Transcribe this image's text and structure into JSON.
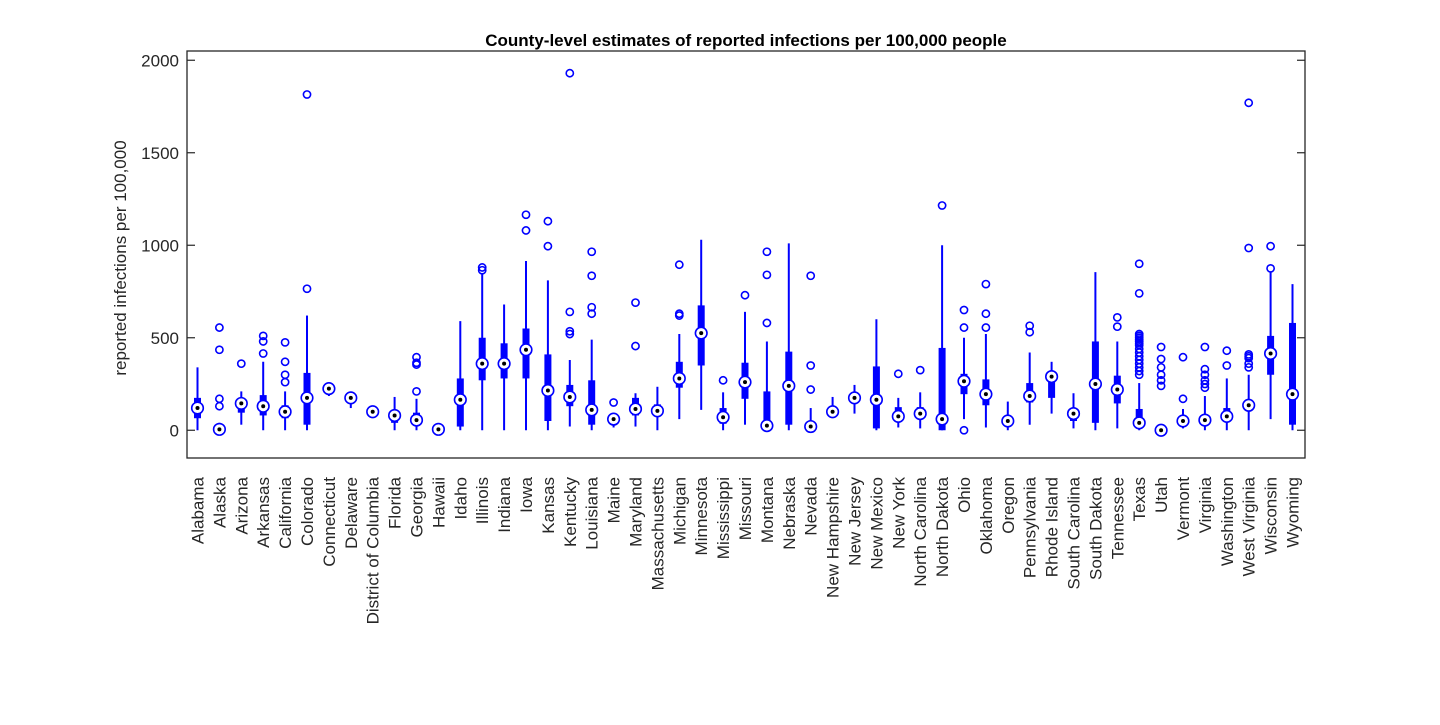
{
  "chart_data": {
    "type": "boxplot",
    "title": "County-level estimates of reported infections per 100,000 people",
    "xlabel": "",
    "ylabel": "reported infections per 100,000",
    "ylim": [
      -150,
      2050
    ],
    "yticks": [
      0,
      500,
      1000,
      1500,
      2000
    ],
    "grid": false,
    "legend": "none",
    "colors": {
      "box": "#0000ff",
      "median_dot": "#000000",
      "axis": "#262626"
    },
    "categories": [
      "Alabama",
      "Alaska",
      "Arizona",
      "Arkansas",
      "California",
      "Colorado",
      "Connecticut",
      "Delaware",
      "District of Columbia",
      "Florida",
      "Georgia",
      "Hawaii",
      "Idaho",
      "Illinois",
      "Indiana",
      "Iowa",
      "Kansas",
      "Kentucky",
      "Louisiana",
      "Maine",
      "Maryland",
      "Massachusetts",
      "Michigan",
      "Minnesota",
      "Mississippi",
      "Missouri",
      "Montana",
      "Nebraska",
      "Nevada",
      "New Hampshire",
      "New Jersey",
      "New Mexico",
      "New York",
      "North Carolina",
      "North Dakota",
      "Ohio",
      "Oklahoma",
      "Oregon",
      "Pennsylvania",
      "Rhode Island",
      "South Carolina",
      "South Dakota",
      "Tennessee",
      "Texas",
      "Utah",
      "Vermont",
      "Virginia",
      "Washington",
      "West Virginia",
      "Wisconsin",
      "Wyoming"
    ],
    "boxes": [
      {
        "q1": 65,
        "median": 120,
        "q3": 175,
        "wlo": 0,
        "whi": 340,
        "outliers": []
      },
      {
        "q1": 0,
        "median": 5,
        "q3": 20,
        "wlo": 0,
        "whi": 40,
        "outliers": [
          130,
          170,
          435,
          555
        ]
      },
      {
        "q1": 95,
        "median": 145,
        "q3": 175,
        "wlo": 30,
        "whi": 210,
        "outliers": [
          360
        ]
      },
      {
        "q1": 80,
        "median": 130,
        "q3": 190,
        "wlo": 0,
        "whi": 370,
        "outliers": [
          415,
          480,
          510
        ]
      },
      {
        "q1": 65,
        "median": 100,
        "q3": 135,
        "wlo": 0,
        "whi": 210,
        "outliers": [
          260,
          300,
          370,
          475
        ]
      },
      {
        "q1": 30,
        "median": 175,
        "q3": 310,
        "wlo": 0,
        "whi": 620,
        "outliers": [
          765,
          1815
        ]
      },
      {
        "q1": 210,
        "median": 225,
        "q3": 245,
        "wlo": 185,
        "whi": 255,
        "outliers": []
      },
      {
        "q1": 155,
        "median": 175,
        "q3": 185,
        "wlo": 120,
        "whi": 190,
        "outliers": []
      },
      {
        "q1": 100,
        "median": 100,
        "q3": 100,
        "wlo": 100,
        "whi": 100,
        "outliers": []
      },
      {
        "q1": 40,
        "median": 80,
        "q3": 110,
        "wlo": 0,
        "whi": 180,
        "outliers": []
      },
      {
        "q1": 25,
        "median": 55,
        "q3": 95,
        "wlo": 0,
        "whi": 170,
        "outliers": [
          210,
          355,
          365,
          395
        ]
      },
      {
        "q1": 5,
        "median": 5,
        "q3": 15,
        "wlo": 0,
        "whi": 20,
        "outliers": []
      },
      {
        "q1": 20,
        "median": 165,
        "q3": 280,
        "wlo": 0,
        "whi": 590,
        "outliers": []
      },
      {
        "q1": 270,
        "median": 360,
        "q3": 500,
        "wlo": 0,
        "whi": 850,
        "outliers": [
          865,
          880
        ]
      },
      {
        "q1": 280,
        "median": 360,
        "q3": 470,
        "wlo": 0,
        "whi": 680,
        "outliers": []
      },
      {
        "q1": 280,
        "median": 435,
        "q3": 550,
        "wlo": 0,
        "whi": 915,
        "outliers": [
          1080,
          1165
        ]
      },
      {
        "q1": 50,
        "median": 215,
        "q3": 410,
        "wlo": 0,
        "whi": 810,
        "outliers": [
          995,
          1130
        ]
      },
      {
        "q1": 130,
        "median": 180,
        "q3": 245,
        "wlo": 20,
        "whi": 380,
        "outliers": [
          520,
          535,
          640,
          1930
        ]
      },
      {
        "q1": 30,
        "median": 110,
        "q3": 270,
        "wlo": 0,
        "whi": 490,
        "outliers": [
          630,
          665,
          835,
          965
        ]
      },
      {
        "q1": 40,
        "median": 60,
        "q3": 75,
        "wlo": 15,
        "whi": 90,
        "outliers": [
          150
        ]
      },
      {
        "q1": 80,
        "median": 115,
        "q3": 175,
        "wlo": 20,
        "whi": 200,
        "outliers": [
          455,
          690
        ]
      },
      {
        "q1": 75,
        "median": 105,
        "q3": 140,
        "wlo": 0,
        "whi": 235,
        "outliers": []
      },
      {
        "q1": 230,
        "median": 280,
        "q3": 370,
        "wlo": 60,
        "whi": 520,
        "outliers": [
          620,
          630,
          895
        ]
      },
      {
        "q1": 350,
        "median": 525,
        "q3": 675,
        "wlo": 110,
        "whi": 1030,
        "outliers": []
      },
      {
        "q1": 35,
        "median": 70,
        "q3": 120,
        "wlo": 0,
        "whi": 205,
        "outliers": [
          270
        ]
      },
      {
        "q1": 170,
        "median": 260,
        "q3": 365,
        "wlo": 30,
        "whi": 640,
        "outliers": [
          730
        ]
      },
      {
        "q1": 0,
        "median": 25,
        "q3": 210,
        "wlo": 0,
        "whi": 480,
        "outliers": [
          580,
          840,
          965
        ]
      },
      {
        "q1": 30,
        "median": 240,
        "q3": 425,
        "wlo": 0,
        "whi": 1010,
        "outliers": []
      },
      {
        "q1": 0,
        "median": 20,
        "q3": 35,
        "wlo": 0,
        "whi": 120,
        "outliers": [
          220,
          350,
          835
        ]
      },
      {
        "q1": 85,
        "median": 100,
        "q3": 125,
        "wlo": 70,
        "whi": 180,
        "outliers": []
      },
      {
        "q1": 150,
        "median": 175,
        "q3": 200,
        "wlo": 90,
        "whi": 245,
        "outliers": []
      },
      {
        "q1": 10,
        "median": 165,
        "q3": 345,
        "wlo": 0,
        "whi": 600,
        "outliers": []
      },
      {
        "q1": 45,
        "median": 75,
        "q3": 125,
        "wlo": 15,
        "whi": 175,
        "outliers": [
          305
        ]
      },
      {
        "q1": 60,
        "median": 90,
        "q3": 125,
        "wlo": 10,
        "whi": 205,
        "outliers": [
          325
        ]
      },
      {
        "q1": 0,
        "median": 60,
        "q3": 445,
        "wlo": 0,
        "whi": 1000,
        "outliers": [
          1215
        ]
      },
      {
        "q1": 195,
        "median": 265,
        "q3": 305,
        "wlo": 60,
        "whi": 500,
        "outliers": [
          0,
          555,
          650
        ]
      },
      {
        "q1": 135,
        "median": 195,
        "q3": 275,
        "wlo": 15,
        "whi": 520,
        "outliers": [
          555,
          630,
          790
        ]
      },
      {
        "q1": 40,
        "median": 50,
        "q3": 70,
        "wlo": 0,
        "whi": 155,
        "outliers": []
      },
      {
        "q1": 150,
        "median": 185,
        "q3": 255,
        "wlo": 30,
        "whi": 420,
        "outliers": [
          530,
          565
        ]
      },
      {
        "q1": 175,
        "median": 290,
        "q3": 310,
        "wlo": 90,
        "whi": 370,
        "outliers": []
      },
      {
        "q1": 50,
        "median": 90,
        "q3": 115,
        "wlo": 10,
        "whi": 200,
        "outliers": []
      },
      {
        "q1": 40,
        "median": 250,
        "q3": 480,
        "wlo": 0,
        "whi": 855,
        "outliers": []
      },
      {
        "q1": 145,
        "median": 220,
        "q3": 295,
        "wlo": 10,
        "whi": 480,
        "outliers": [
          560,
          610
        ]
      },
      {
        "q1": 20,
        "median": 40,
        "q3": 115,
        "wlo": 0,
        "whi": 255,
        "outliers": [
          300,
          320,
          340,
          360,
          380,
          400,
          420,
          440,
          460,
          470,
          480,
          490,
          500,
          510,
          520,
          740,
          900
        ]
      },
      {
        "q1": 0,
        "median": 0,
        "q3": 15,
        "wlo": 0,
        "whi": 25,
        "outliers": [
          5,
          240,
          270,
          300,
          340,
          385,
          450
        ]
      },
      {
        "q1": 30,
        "median": 50,
        "q3": 60,
        "wlo": 10,
        "whi": 115,
        "outliers": [
          170,
          395
        ]
      },
      {
        "q1": 40,
        "median": 55,
        "q3": 80,
        "wlo": 0,
        "whi": 185,
        "outliers": [
          230,
          250,
          270,
          300,
          330,
          450
        ]
      },
      {
        "q1": 50,
        "median": 75,
        "q3": 120,
        "wlo": 0,
        "whi": 280,
        "outliers": [
          350,
          430
        ]
      },
      {
        "q1": 110,
        "median": 135,
        "q3": 165,
        "wlo": 0,
        "whi": 300,
        "outliers": [
          340,
          360,
          390,
          400,
          410,
          985,
          1770
        ]
      },
      {
        "q1": 300,
        "median": 415,
        "q3": 510,
        "wlo": 60,
        "whi": 855,
        "outliers": [
          875,
          995
        ]
      },
      {
        "q1": 30,
        "median": 195,
        "q3": 580,
        "wlo": 0,
        "whi": 790,
        "outliers": []
      }
    ]
  }
}
